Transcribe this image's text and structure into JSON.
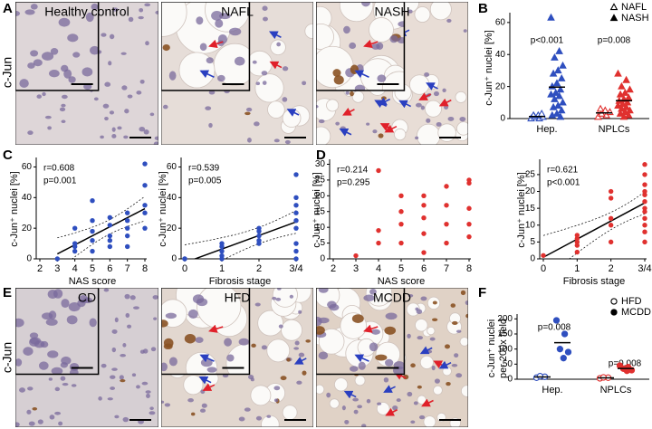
{
  "figure": {
    "panel_A": {
      "label": "A",
      "row_label": "c-Jun",
      "titles": [
        "Healthy control",
        "NAFL",
        "NASH"
      ]
    },
    "panel_E": {
      "label": "E",
      "row_label": "c-Jun",
      "titles": [
        "CD",
        "HFD",
        "MCDD"
      ]
    }
  },
  "chart_data": [
    {
      "type": "strip",
      "panel_label": "B",
      "y_label": "c-Jun⁺ nuclei [%]",
      "categories": [
        "Hep.",
        "NPLCs"
      ],
      "category_colors": [
        "#2f4fbf",
        "#e0312f"
      ],
      "series": [
        {
          "name": "NAFL",
          "color": "#000000",
          "marker": "triangle-open",
          "values": [
            [
              0,
              0,
              1,
              1,
              2,
              2,
              3
            ],
            [
              1,
              2,
              3,
              4,
              5,
              6
            ]
          ]
        },
        {
          "name": "NASH",
          "color": "#000000",
          "marker": "triangle",
          "values": [
            [
              63,
              42,
              38,
              33,
              30,
              28,
              25,
              22,
              20,
              18,
              16,
              15,
              14,
              12,
              10,
              8,
              7,
              5,
              3,
              2,
              1
            ],
            [
              28,
              24,
              20,
              18,
              16,
              15,
              13,
              12,
              11,
              10,
              9,
              8,
              7,
              6,
              5,
              4,
              3,
              2,
              1
            ]
          ]
        }
      ],
      "annotations": [
        "p<0.001",
        "p=0.008"
      ],
      "ylim": [
        0,
        65
      ],
      "yticks": [
        0,
        20,
        40,
        60
      ],
      "mean_line": true,
      "legend": "top-right"
    },
    {
      "type": "scatter",
      "panel_label": "C",
      "y_label": "c-Jun⁺ nuclei [%]",
      "x_label": "NAS score",
      "annotations": [
        "r=0.608",
        "p=0.001"
      ],
      "color": "#2f4fbf",
      "x": [
        3,
        4,
        4,
        4,
        4,
        5,
        5,
        5,
        5,
        5,
        6,
        6,
        6,
        6,
        6,
        7,
        7,
        7,
        7,
        7,
        8,
        8,
        8,
        8,
        8
      ],
      "values": [
        0,
        5,
        8,
        10,
        20,
        12,
        18,
        25,
        5,
        38,
        8,
        12,
        15,
        27,
        22,
        15,
        20,
        25,
        30,
        8,
        20,
        30,
        35,
        62,
        48
      ],
      "xlim": [
        2,
        8
      ],
      "xticks": [
        2,
        3,
        4,
        5,
        6,
        7,
        8
      ],
      "ylim": [
        0,
        65
      ],
      "yticks": [
        0,
        20,
        40,
        60
      ],
      "regression": true
    },
    {
      "type": "category_scatter",
      "y_label": "c-Jun⁺ nuclei [%]",
      "x_label": "Fibrosis stage",
      "annotations": [
        "r=0.539",
        "p=0.005"
      ],
      "color": "#2f4fbf",
      "categories": [
        "0",
        "1",
        "2",
        "3/4"
      ],
      "values": [
        [
          0,
          0
        ],
        [
          0,
          2,
          5,
          8,
          10
        ],
        [
          10,
          12,
          15,
          18,
          20
        ],
        [
          0,
          5,
          10,
          20,
          25,
          30,
          35,
          40,
          55
        ]
      ],
      "ylim": [
        0,
        65
      ],
      "yticks": [
        0,
        20,
        40,
        60
      ],
      "regression": true
    },
    {
      "type": "scatter",
      "panel_label": "D",
      "y_label": "c-Jun⁺ nuclei [%]",
      "x_label": "NAS score",
      "annotations": [
        "r=0.214",
        "p=0.295"
      ],
      "color": "#e0312f",
      "x": [
        3,
        4,
        4,
        4,
        5,
        5,
        5,
        5,
        6,
        6,
        6,
        6,
        6,
        7,
        7,
        7,
        7,
        8,
        8,
        8,
        8,
        8
      ],
      "values": [
        1,
        5,
        9,
        28,
        5,
        11,
        15,
        20,
        2,
        8,
        13,
        17,
        20,
        5,
        11,
        17,
        23,
        7,
        11,
        16,
        24,
        25
      ],
      "xlim": [
        2,
        8
      ],
      "xticks": [
        2,
        3,
        4,
        5,
        6,
        7,
        8
      ],
      "ylim": [
        0,
        31
      ],
      "yticks": [
        0,
        5,
        10,
        15,
        20,
        25,
        30
      ],
      "regression": false
    },
    {
      "type": "category_scatter",
      "y_label": "c-Jun⁺ nuclei [%]",
      "x_label": "Fibrosis stage",
      "annotations": [
        "r=0.621",
        "p<0.001"
      ],
      "color": "#e0312f",
      "categories": [
        "0",
        "1",
        "2",
        "3/4"
      ],
      "values": [
        [
          1
        ],
        [
          2,
          4,
          5,
          6,
          7
        ],
        [
          5,
          10,
          12,
          18,
          20
        ],
        [
          5,
          8,
          10,
          12,
          14,
          15,
          17,
          19,
          20,
          22,
          25,
          28
        ]
      ],
      "ylim": [
        0,
        29
      ],
      "yticks": [
        0,
        5,
        10,
        15,
        20,
        25
      ],
      "regression": true
    },
    {
      "type": "strip",
      "panel_label": "F",
      "y_label_lines": [
        "c-Jun⁺ nuclei",
        "per 200x field"
      ],
      "categories": [
        "Hep.",
        "NPLCs"
      ],
      "category_colors": [
        "#2f4fbf",
        "#e0312f"
      ],
      "series": [
        {
          "name": "HFD",
          "color": "#000000",
          "marker": "circle-open",
          "values": [
            [
              5,
              8,
              10
            ],
            [
              3,
              5,
              6
            ]
          ]
        },
        {
          "name": "MCDD",
          "color": "#000000",
          "marker": "circle",
          "values": [
            [
              195,
              150,
              100,
              90,
              70
            ],
            [
              45,
              40,
              35,
              30,
              28
            ]
          ]
        }
      ],
      "annotations": [
        "p=0.008",
        "p=0.008"
      ],
      "ylim": [
        0,
        210
      ],
      "yticks": [
        0,
        50,
        100,
        150,
        200
      ],
      "mean_line": true,
      "legend": "top-right"
    }
  ]
}
